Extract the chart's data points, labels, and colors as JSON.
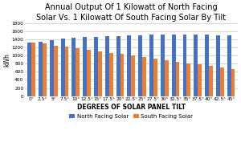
{
  "title": "Annual Output Of 1 Kilowatt of North Facing\nSolar Vs. 1 Kilowatt Of South Facing Solar By Tilt",
  "xlabel": "DEGREES OF SOLAR PANEL TILT",
  "ylabel": "kWh",
  "categories": [
    "0°",
    "2.5°",
    "5°",
    "7.5°",
    "10°",
    "12.5°",
    "15°",
    "17.5°",
    "20°",
    "22.5°",
    "25°",
    "27.5°",
    "30°",
    "32.5°",
    "35°",
    "37.5°",
    "40°",
    "42.5°",
    "45°"
  ],
  "north_facing": [
    1320,
    1340,
    1385,
    1410,
    1430,
    1450,
    1465,
    1475,
    1480,
    1500,
    1505,
    1510,
    1515,
    1515,
    1515,
    1515,
    1510,
    1505,
    1495
  ],
  "south_facing": [
    1320,
    1295,
    1250,
    1215,
    1175,
    1145,
    1110,
    1070,
    1045,
    1005,
    970,
    930,
    880,
    845,
    805,
    785,
    745,
    700,
    665
  ],
  "north_color": "#4472c4",
  "south_color": "#ed7d31",
  "ylim": [
    0,
    1800
  ],
  "yticks": [
    0,
    200,
    400,
    600,
    800,
    1000,
    1200,
    1400,
    1600,
    1800
  ],
  "title_fontsize": 7.0,
  "xlabel_fontsize": 5.5,
  "ylabel_fontsize": 5.5,
  "tick_fontsize": 4.2,
  "legend_fontsize": 5.0,
  "background_color": "#ffffff",
  "plot_bg_color": "#ffffff",
  "grid_color": "#d0d0d0"
}
